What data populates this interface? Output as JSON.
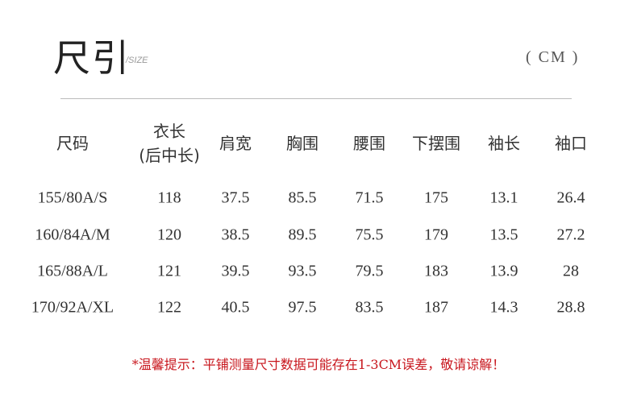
{
  "title": "尺引",
  "subtitle": "/SIZE",
  "unit": "( CM )",
  "table": {
    "headers": [
      "尺码",
      "衣长\n(后中长)",
      "肩宽",
      "胸围",
      "腰围",
      "下摆围",
      "袖长",
      "袖口"
    ],
    "rows": [
      [
        "155/80A/S",
        "118",
        "37.5",
        "85.5",
        "71.5",
        "175",
        "13.1",
        "26.4"
      ],
      [
        "160/84A/M",
        "120",
        "38.5",
        "89.5",
        "75.5",
        "179",
        "13.5",
        "27.2"
      ],
      [
        "165/88A/L",
        "121",
        "39.5",
        "93.5",
        "79.5",
        "183",
        "13.9",
        "28"
      ],
      [
        "170/92A/XL",
        "122",
        "40.5",
        "97.5",
        "83.5",
        "187",
        "14.3",
        "28.8"
      ]
    ]
  },
  "note": "*温馨提示：平铺测量尺寸数据可能存在1-3CM误差，敬请谅解！",
  "colors": {
    "note": "#c8161d"
  }
}
